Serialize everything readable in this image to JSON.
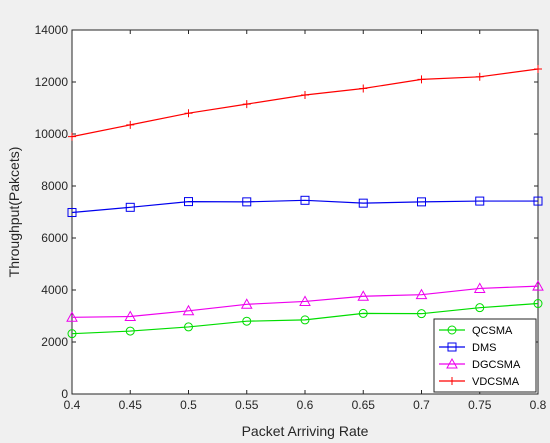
{
  "chart_data": {
    "type": "line",
    "title": "",
    "xlabel": "Packet Arriving Rate",
    "ylabel": "Throughput(Pakcets)",
    "xlim": [
      0.4,
      0.8
    ],
    "ylim": [
      0,
      14000
    ],
    "xticks": [
      0.4,
      0.45,
      0.5,
      0.55,
      0.6,
      0.65,
      0.7,
      0.75,
      0.8
    ],
    "xtick_labels": [
      "0.4",
      "0.45",
      "0.5",
      "0.55",
      "0.6",
      "0.65",
      "0.7",
      "0.75",
      "0.8"
    ],
    "yticks": [
      0,
      2000,
      4000,
      6000,
      8000,
      10000,
      12000,
      14000
    ],
    "ytick_labels": [
      "0",
      "2000",
      "4000",
      "6000",
      "8000",
      "10000",
      "12000",
      "14000"
    ],
    "grid": false,
    "legend_position": "bottom-right",
    "x": [
      0.4,
      0.45,
      0.5,
      0.55,
      0.6,
      0.65,
      0.7,
      0.75,
      0.8
    ],
    "series": [
      {
        "name": "QCSMA",
        "color": "#00dd00",
        "marker": "circle",
        "values": [
          2320,
          2420,
          2580,
          2800,
          2850,
          3100,
          3090,
          3320,
          3480
        ]
      },
      {
        "name": "DMS",
        "color": "#0000ee",
        "marker": "square",
        "values": [
          6980,
          7180,
          7400,
          7390,
          7450,
          7340,
          7390,
          7420,
          7420
        ]
      },
      {
        "name": "DGCSMA",
        "color": "#ee00ee",
        "marker": "triangle",
        "values": [
          2950,
          2980,
          3200,
          3450,
          3560,
          3760,
          3820,
          4060,
          4150
        ]
      },
      {
        "name": "VDCSMA",
        "color": "#ff0000",
        "marker": "plus",
        "values": [
          9900,
          10350,
          10800,
          11150,
          11500,
          11750,
          12100,
          12200,
          12500
        ]
      }
    ]
  }
}
